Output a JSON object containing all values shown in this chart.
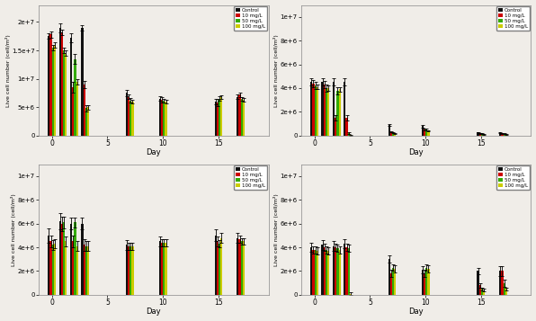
{
  "panels": [
    {
      "ylabel": "Live cell number (cell/m²)",
      "days": [
        0,
        1,
        2,
        3,
        7,
        10,
        15,
        17
      ],
      "xticks": [
        0,
        5,
        10,
        15
      ],
      "ylim": [
        0,
        23000000.0
      ],
      "yticks": [
        0,
        5000000.0,
        10000000.0,
        15000000.0,
        20000000.0
      ],
      "ytick_labels": [
        "0",
        "5e+6",
        "1e+7",
        "1.5e+7",
        "2e+7"
      ],
      "data": {
        "Control": [
          17500000.0,
          19000000.0,
          17200000.0,
          19000000.0,
          7500000.0,
          6500000.0,
          6000000.0,
          6800000.0
        ],
        "10 mg/L": [
          17800000.0,
          18200000.0,
          8500000.0,
          9000000.0,
          6800000.0,
          6300000.0,
          5800000.0,
          7200000.0
        ],
        "50 mg/L": [
          15500000.0,
          15000000.0,
          13500000.0,
          4800000.0,
          6200000.0,
          6100000.0,
          6500000.0,
          6500000.0
        ],
        "100 mg/L": [
          16000000.0,
          14500000.0,
          9500000.0,
          5000000.0,
          6000000.0,
          6000000.0,
          6800000.0,
          6300000.0
        ]
      },
      "errors": {
        "Control": [
          500000.0,
          800000.0,
          800000.0,
          500000.0,
          500000.0,
          400000.0,
          500000.0,
          400000.0
        ],
        "10 mg/L": [
          600000.0,
          500000.0,
          900000.0,
          600000.0,
          400000.0,
          400000.0,
          600000.0,
          400000.0
        ],
        "50 mg/L": [
          500000.0,
          500000.0,
          800000.0,
          500000.0,
          400000.0,
          300000.0,
          400000.0,
          300000.0
        ],
        "100 mg/L": [
          500000.0,
          500000.0,
          500000.0,
          400000.0,
          300000.0,
          300000.0,
          300000.0,
          300000.0
        ]
      }
    },
    {
      "ylabel": "Live cell number (cell/m²)",
      "days": [
        0,
        1,
        2,
        3,
        7,
        10,
        15,
        17
      ],
      "xticks": [
        0,
        5,
        10,
        15
      ],
      "ylim": [
        0,
        11000000.0
      ],
      "yticks": [
        0,
        2000000.0,
        4000000.0,
        6000000.0,
        8000000.0,
        10000000.0
      ],
      "ytick_labels": [
        "0",
        "2e+6",
        "4e+6",
        "6e+6",
        "8e+6",
        "1e+7"
      ],
      "data": {
        "Control": [
          4500000.0,
          4500000.0,
          4500000.0,
          4500000.0,
          900000.0,
          800000.0,
          250000.0,
          250000.0
        ],
        "10 mg/L": [
          4400000.0,
          4300000.0,
          1500000.0,
          1500000.0,
          300000.0,
          500000.0,
          200000.0,
          200000.0
        ],
        "50 mg/L": [
          4200000.0,
          4000000.0,
          3800000.0,
          200000.0,
          250000.0,
          500000.0,
          150000.0,
          150000.0
        ],
        "100 mg/L": [
          4100000.0,
          4000000.0,
          3900000.0,
          50000.0,
          200000.0,
          400000.0,
          100000.0,
          100000.0
        ]
      },
      "errors": {
        "Control": [
          300000.0,
          300000.0,
          300000.0,
          300000.0,
          100000.0,
          100000.0,
          50000.0,
          50000.0
        ],
        "10 mg/L": [
          300000.0,
          300000.0,
          200000.0,
          200000.0,
          50000.0,
          80000.0,
          40000.0,
          40000.0
        ],
        "50 mg/L": [
          300000.0,
          300000.0,
          300000.0,
          100000.0,
          50000.0,
          70000.0,
          30000.0,
          30000.0
        ],
        "100 mg/L": [
          200000.0,
          200000.0,
          200000.0,
          30000.0,
          40000.0,
          50000.0,
          20000.0,
          20000.0
        ]
      }
    },
    {
      "ylabel": "Live cell number (cell/m²)",
      "days": [
        0,
        1,
        2,
        3,
        7,
        10,
        15,
        17
      ],
      "xticks": [
        0,
        5,
        10,
        15
      ],
      "ylim": [
        0,
        11000000.0
      ],
      "yticks": [
        0,
        2000000.0,
        4000000.0,
        6000000.0,
        8000000.0,
        10000000.0
      ],
      "ytick_labels": [
        "0",
        "2e+6",
        "4e+6",
        "6e+6",
        "8e+6",
        "1e+7"
      ],
      "data": {
        "Control": [
          5000000.0,
          6200000.0,
          6000000.0,
          6000000.0,
          4200000.0,
          4500000.0,
          5000000.0,
          4800000.0
        ],
        "10 mg/L": [
          4500000.0,
          6000000.0,
          4500000.0,
          4200000.0,
          4100000.0,
          4400000.0,
          4500000.0,
          4700000.0
        ],
        "50 mg/L": [
          4200000.0,
          6100000.0,
          6100000.0,
          4100000.0,
          4100000.0,
          4400000.0,
          4300000.0,
          4500000.0
        ],
        "100 mg/L": [
          4300000.0,
          4500000.0,
          4100000.0,
          4100000.0,
          4100000.0,
          4400000.0,
          4800000.0,
          4500000.0
        ]
      },
      "errors": {
        "Control": [
          600000.0,
          700000.0,
          500000.0,
          500000.0,
          400000.0,
          400000.0,
          500000.0,
          400000.0
        ],
        "10 mg/L": [
          500000.0,
          600000.0,
          500000.0,
          500000.0,
          300000.0,
          300000.0,
          400000.0,
          300000.0
        ],
        "50 mg/L": [
          400000.0,
          500000.0,
          400000.0,
          400000.0,
          300000.0,
          300000.0,
          300000.0,
          300000.0
        ],
        "100 mg/L": [
          400000.0,
          400000.0,
          400000.0,
          400000.0,
          300000.0,
          300000.0,
          400000.0,
          300000.0
        ]
      }
    },
    {
      "ylabel": "Live cell number (cell/m²)",
      "days": [
        0,
        1,
        2,
        3,
        7,
        10,
        15,
        17
      ],
      "xticks": [
        0,
        5,
        10,
        15
      ],
      "ylim": [
        0,
        11000000.0
      ],
      "yticks": [
        0,
        2000000.0,
        4000000.0,
        6000000.0,
        8000000.0,
        10000000.0
      ],
      "ytick_labels": [
        "0",
        "2e+6",
        "4e+6",
        "6e+6",
        "8e+6",
        "1e+7"
      ],
      "data": {
        "Control": [
          4000000.0,
          4200000.0,
          4100000.0,
          4300000.0,
          3000000.0,
          2100000.0,
          2000000.0,
          2000000.0
        ],
        "10 mg/L": [
          3800000.0,
          4000000.0,
          4000000.0,
          4000000.0,
          1800000.0,
          1800000.0,
          800000.0,
          2000000.0
        ],
        "50 mg/L": [
          3800000.0,
          3800000.0,
          3900000.0,
          3900000.0,
          2300000.0,
          2300000.0,
          500000.0,
          1000000.0
        ],
        "100 mg/L": [
          3700000.0,
          3700000.0,
          3800000.0,
          100000.0,
          2200000.0,
          2200000.0,
          400000.0,
          500000.0
        ]
      },
      "errors": {
        "Control": [
          400000.0,
          400000.0,
          400000.0,
          400000.0,
          300000.0,
          300000.0,
          300000.0,
          400000.0
        ],
        "10 mg/L": [
          300000.0,
          300000.0,
          300000.0,
          300000.0,
          300000.0,
          300000.0,
          200000.0,
          400000.0
        ],
        "50 mg/L": [
          300000.0,
          300000.0,
          300000.0,
          300000.0,
          300000.0,
          300000.0,
          100000.0,
          300000.0
        ],
        "100 mg/L": [
          300000.0,
          300000.0,
          300000.0,
          100000.0,
          300000.0,
          300000.0,
          100000.0,
          100000.0
        ]
      }
    }
  ],
  "colors": [
    "#111111",
    "#cc0000",
    "#33aa00",
    "#cccc00"
  ],
  "legend_labels": [
    "Control",
    "10 mg/L",
    "50 mg/L",
    "100 mg/L"
  ],
  "xlabel": "Day",
  "background_color": "#f0ede8"
}
